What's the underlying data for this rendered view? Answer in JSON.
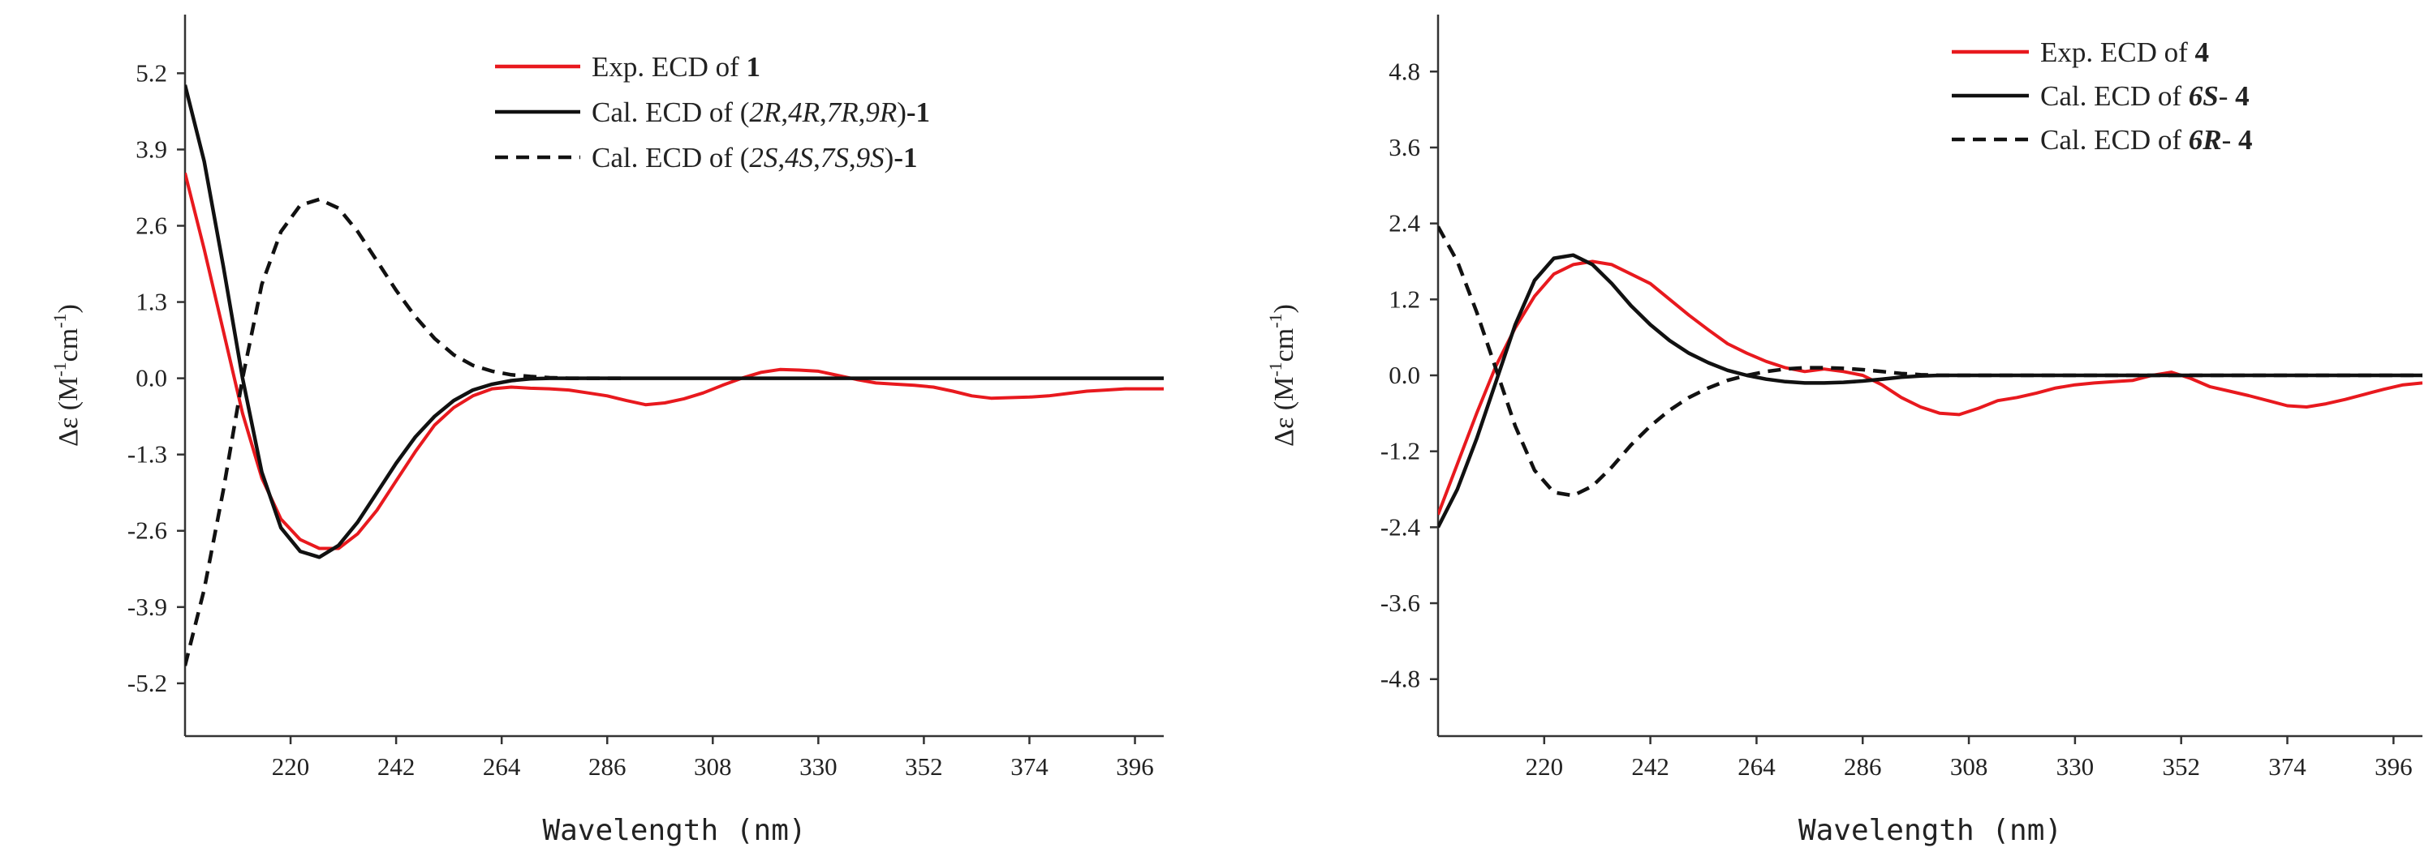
{
  "chart_data": [
    {
      "type": "line",
      "xlabel": "Wavelength (nm)",
      "ylabel": "Δε (M-1cm-1)",
      "ylabel_parts": {
        "base": "Δε (M",
        "sup1": "-1",
        "mid": "cm",
        "sup2": "-1",
        "end": ")"
      },
      "xlim": [
        198,
        402
      ],
      "ylim": [
        -6.1,
        6.2
      ],
      "xticks": [
        220,
        242,
        264,
        286,
        308,
        330,
        352,
        374,
        396
      ],
      "yticks": [
        5.2,
        3.9,
        2.6,
        1.3,
        0.0,
        -1.3,
        -2.6,
        -3.9,
        -5.2
      ],
      "ytick_labels": [
        "5.2",
        "3.9",
        "2.6",
        "1.3",
        "0.0",
        "-1.3",
        "-2.6",
        "-3.9",
        "-5.2"
      ],
      "legend_position": "top-right",
      "series": [
        {
          "name": "Exp. ECD of 1",
          "legend_parts": [
            {
              "t": "Exp. ECD of ",
              "s": "n"
            },
            {
              "t": "1",
              "s": "b"
            }
          ],
          "color": "#e8191e",
          "style": "solid",
          "x": [
            198,
            202,
            206,
            210,
            214,
            218,
            222,
            226,
            230,
            234,
            238,
            242,
            246,
            250,
            254,
            258,
            262,
            266,
            270,
            274,
            278,
            282,
            286,
            290,
            294,
            298,
            302,
            306,
            310,
            314,
            318,
            322,
            326,
            330,
            334,
            338,
            342,
            346,
            350,
            354,
            358,
            362,
            366,
            370,
            374,
            378,
            382,
            386,
            390,
            394,
            398,
            402
          ],
          "y": [
            3.5,
            2.2,
            0.8,
            -0.6,
            -1.7,
            -2.4,
            -2.75,
            -2.9,
            -2.9,
            -2.65,
            -2.25,
            -1.75,
            -1.25,
            -0.8,
            -0.5,
            -0.3,
            -0.18,
            -0.15,
            -0.17,
            -0.18,
            -0.2,
            -0.25,
            -0.3,
            -0.38,
            -0.45,
            -0.42,
            -0.35,
            -0.25,
            -0.12,
            0.0,
            0.1,
            0.15,
            0.14,
            0.12,
            0.05,
            -0.02,
            -0.08,
            -0.1,
            -0.12,
            -0.15,
            -0.22,
            -0.3,
            -0.34,
            -0.33,
            -0.32,
            -0.3,
            -0.26,
            -0.22,
            -0.2,
            -0.18,
            -0.18,
            -0.18
          ]
        },
        {
          "name": "Cal. ECD of (2R,4R,7R,9R)-1",
          "legend_parts": [
            {
              "t": "Cal. ECD of (",
              "s": "n"
            },
            {
              "t": "2R",
              "s": "i"
            },
            {
              "t": ",",
              "s": "n"
            },
            {
              "t": "4R",
              "s": "i"
            },
            {
              "t": ",",
              "s": "n"
            },
            {
              "t": "7R",
              "s": "i"
            },
            {
              "t": ",",
              "s": "n"
            },
            {
              "t": "9R",
              "s": "i"
            },
            {
              "t": ")",
              "s": "n"
            },
            {
              "t": "-1",
              "s": "b"
            }
          ],
          "color": "#111111",
          "style": "solid",
          "x": [
            198,
            202,
            206,
            210,
            214,
            218,
            222,
            226,
            230,
            234,
            238,
            242,
            246,
            250,
            254,
            258,
            262,
            266,
            270,
            274,
            278,
            282,
            286,
            402
          ],
          "y": [
            5.0,
            3.7,
            1.9,
            0.0,
            -1.6,
            -2.55,
            -2.95,
            -3.05,
            -2.85,
            -2.45,
            -1.95,
            -1.45,
            -1.0,
            -0.65,
            -0.38,
            -0.2,
            -0.1,
            -0.04,
            -0.01,
            0.0,
            0.0,
            0.0,
            0.0,
            0.0
          ]
        },
        {
          "name": "Cal. ECD of (2S,4S,7S,9S)-1",
          "legend_parts": [
            {
              "t": "Cal. ECD of (",
              "s": "n"
            },
            {
              "t": "2S",
              "s": "i"
            },
            {
              "t": ",",
              "s": "n"
            },
            {
              "t": "4S",
              "s": "i"
            },
            {
              "t": ",",
              "s": "n"
            },
            {
              "t": "7S",
              "s": "i"
            },
            {
              "t": ",",
              "s": "n"
            },
            {
              "t": "9S",
              "s": "i"
            },
            {
              "t": ")",
              "s": "n"
            },
            {
              "t": "-1",
              "s": "b"
            }
          ],
          "color": "#111111",
          "style": "dashed",
          "x": [
            198,
            202,
            206,
            210,
            214,
            218,
            222,
            226,
            230,
            234,
            238,
            242,
            246,
            250,
            254,
            258,
            262,
            266,
            270,
            274,
            278,
            282,
            286,
            290
          ],
          "y": [
            -4.9,
            -3.6,
            -1.9,
            0.0,
            1.6,
            2.5,
            2.95,
            3.05,
            2.9,
            2.5,
            2.0,
            1.5,
            1.05,
            0.68,
            0.4,
            0.22,
            0.12,
            0.06,
            0.03,
            0.01,
            0.0,
            0.0,
            0.0,
            0.0
          ]
        }
      ]
    },
    {
      "type": "line",
      "xlabel": "Wavelength (nm)",
      "ylabel": "Δε (M-1cm-1)",
      "ylabel_parts": {
        "base": "Δε (M",
        "sup1": "-1",
        "mid": "cm",
        "sup2": "-1",
        "end": ")"
      },
      "xlim": [
        198,
        402
      ],
      "ylim": [
        -5.7,
        5.7
      ],
      "xticks": [
        220,
        242,
        264,
        286,
        308,
        330,
        352,
        374,
        396
      ],
      "yticks": [
        4.8,
        3.6,
        2.4,
        1.2,
        0.0,
        -1.2,
        -2.4,
        -3.6,
        -4.8
      ],
      "ytick_labels": [
        "4.8",
        "3.6",
        "2.4",
        "1.2",
        "0.0",
        "-1.2",
        "-2.4",
        "-3.6",
        "-4.8"
      ],
      "legend_position": "top-right",
      "series": [
        {
          "name": "Exp. ECD of 4",
          "legend_parts": [
            {
              "t": "Exp. ECD of  ",
              "s": "n"
            },
            {
              "t": "4",
              "s": "b"
            }
          ],
          "color": "#e8191e",
          "style": "solid",
          "x": [
            198,
            202,
            206,
            210,
            214,
            218,
            222,
            226,
            230,
            234,
            238,
            242,
            246,
            250,
            254,
            258,
            262,
            266,
            270,
            274,
            278,
            282,
            286,
            290,
            294,
            298,
            302,
            306,
            310,
            314,
            318,
            322,
            326,
            330,
            334,
            338,
            342,
            346,
            350,
            354,
            358,
            362,
            366,
            370,
            374,
            378,
            382,
            386,
            390,
            394,
            398,
            402
          ],
          "y": [
            -2.2,
            -1.4,
            -0.6,
            0.15,
            0.75,
            1.25,
            1.6,
            1.75,
            1.8,
            1.75,
            1.6,
            1.45,
            1.2,
            0.95,
            0.72,
            0.5,
            0.35,
            0.22,
            0.12,
            0.06,
            0.1,
            0.06,
            0.0,
            -0.15,
            -0.35,
            -0.5,
            -0.6,
            -0.62,
            -0.52,
            -0.4,
            -0.35,
            -0.28,
            -0.2,
            -0.15,
            -0.12,
            -0.1,
            -0.08,
            0.0,
            0.05,
            -0.05,
            -0.18,
            -0.25,
            -0.32,
            -0.4,
            -0.48,
            -0.5,
            -0.45,
            -0.38,
            -0.3,
            -0.22,
            -0.15,
            -0.12
          ]
        },
        {
          "name": "Cal. ECD of 6S- 4",
          "legend_parts": [
            {
              "t": "Cal. ECD of ",
              "s": "n"
            },
            {
              "t": "6S",
              "s": "bi"
            },
            {
              "t": "- ",
              "s": "n"
            },
            {
              "t": "4",
              "s": "b"
            }
          ],
          "color": "#111111",
          "style": "solid",
          "x": [
            198,
            202,
            206,
            210,
            214,
            218,
            222,
            226,
            230,
            234,
            238,
            242,
            246,
            250,
            254,
            258,
            262,
            266,
            270,
            274,
            278,
            282,
            286,
            290,
            294,
            298,
            302,
            402
          ],
          "y": [
            -2.4,
            -1.8,
            -1.0,
            -0.1,
            0.8,
            1.5,
            1.85,
            1.9,
            1.75,
            1.45,
            1.1,
            0.8,
            0.55,
            0.35,
            0.2,
            0.08,
            0.0,
            -0.06,
            -0.1,
            -0.12,
            -0.12,
            -0.11,
            -0.09,
            -0.06,
            -0.03,
            -0.01,
            0.0,
            0.0
          ]
        },
        {
          "name": "Cal. ECD of 6R- 4",
          "legend_parts": [
            {
              "t": "Cal. ECD of ",
              "s": "n"
            },
            {
              "t": "6R",
              "s": "bi"
            },
            {
              "t": "- ",
              "s": "n"
            },
            {
              "t": "4",
              "s": "b"
            }
          ],
          "color": "#111111",
          "style": "dashed",
          "x": [
            198,
            202,
            206,
            210,
            214,
            218,
            222,
            226,
            230,
            234,
            238,
            242,
            246,
            250,
            254,
            258,
            262,
            266,
            270,
            274,
            278,
            282,
            286,
            290,
            294,
            298,
            302,
            402
          ],
          "y": [
            2.35,
            1.8,
            1.0,
            0.1,
            -0.8,
            -1.5,
            -1.85,
            -1.9,
            -1.75,
            -1.45,
            -1.1,
            -0.8,
            -0.55,
            -0.35,
            -0.2,
            -0.08,
            0.0,
            0.06,
            0.1,
            0.12,
            0.12,
            0.11,
            0.09,
            0.06,
            0.03,
            0.01,
            0.0,
            0.0
          ]
        }
      ]
    }
  ]
}
